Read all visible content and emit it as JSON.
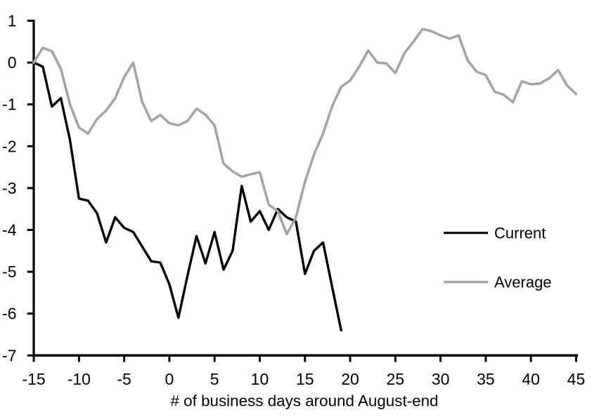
{
  "chart_data": {
    "type": "line",
    "title": "",
    "xlabel": "# of business days around August-end",
    "ylabel": "",
    "xlim": [
      -15,
      45
    ],
    "ylim": [
      -7,
      1
    ],
    "x_ticks": [
      -15,
      -10,
      -5,
      0,
      5,
      10,
      15,
      20,
      25,
      30,
      35,
      40,
      45
    ],
    "y_ticks": [
      1,
      0,
      -1,
      -2,
      -3,
      -4,
      -5,
      -6,
      -7
    ],
    "grid": false,
    "legend_position": "middle-right",
    "series": [
      {
        "name": "Current",
        "color": "#000000",
        "x": [
          -15,
          -14,
          -13,
          -12,
          -11,
          -10,
          -9,
          -8,
          -7,
          -6,
          -5,
          -4,
          -3,
          -2,
          -1,
          0,
          1,
          2,
          3,
          4,
          5,
          6,
          7,
          8,
          9,
          10,
          11,
          12,
          13,
          14,
          15,
          16,
          17,
          18,
          19
        ],
        "values": [
          0,
          -0.1,
          -1.05,
          -0.85,
          -1.85,
          -3.25,
          -3.3,
          -3.6,
          -4.3,
          -3.7,
          -3.95,
          -4.05,
          -4.4,
          -4.75,
          -4.78,
          -5.3,
          -6.1,
          -5.1,
          -4.15,
          -4.8,
          -4.05,
          -4.95,
          -4.5,
          -2.95,
          -3.8,
          -3.55,
          -4.0,
          -3.5,
          -3.7,
          -3.8,
          -5.05,
          -4.5,
          -4.3,
          -5.35,
          -6.4
        ]
      },
      {
        "name": "Average",
        "color": "#a5a5a5",
        "x": [
          -15,
          -14,
          -13,
          -12,
          -11,
          -10,
          -9,
          -8,
          -7,
          -6,
          -5,
          -4,
          -3,
          -2,
          -1,
          0,
          1,
          2,
          3,
          4,
          5,
          6,
          7,
          8,
          9,
          10,
          11,
          12,
          13,
          14,
          15,
          16,
          17,
          18,
          19,
          20,
          21,
          22,
          23,
          24,
          25,
          26,
          27,
          28,
          29,
          30,
          31,
          32,
          33,
          34,
          35,
          36,
          37,
          38,
          39,
          40,
          41,
          42,
          43,
          44,
          45
        ],
        "values": [
          0,
          0.35,
          0.27,
          -0.15,
          -1.0,
          -1.55,
          -1.7,
          -1.35,
          -1.15,
          -0.85,
          -0.35,
          0.0,
          -0.95,
          -1.4,
          -1.25,
          -1.45,
          -1.5,
          -1.4,
          -1.1,
          -1.25,
          -1.5,
          -2.42,
          -2.6,
          -2.73,
          -2.67,
          -2.62,
          -3.4,
          -3.55,
          -4.1,
          -3.7,
          -2.85,
          -2.2,
          -1.7,
          -1.05,
          -0.58,
          -0.43,
          -0.1,
          0.29,
          0.0,
          -0.02,
          -0.25,
          0.22,
          0.5,
          0.8,
          0.75,
          0.65,
          0.57,
          0.65,
          0.05,
          -0.22,
          -0.3,
          -0.7,
          -0.77,
          -0.95,
          -0.45,
          -0.52,
          -0.5,
          -0.38,
          -0.18,
          -0.55,
          -0.75
        ]
      }
    ]
  },
  "legend": {
    "items": [
      {
        "label": "Current",
        "color": "#000000"
      },
      {
        "label": "Average",
        "color": "#a5a5a5"
      }
    ]
  },
  "colors": {
    "background": "#ffffff",
    "axis": "#000000",
    "current": "#000000",
    "average": "#a5a5a5"
  }
}
